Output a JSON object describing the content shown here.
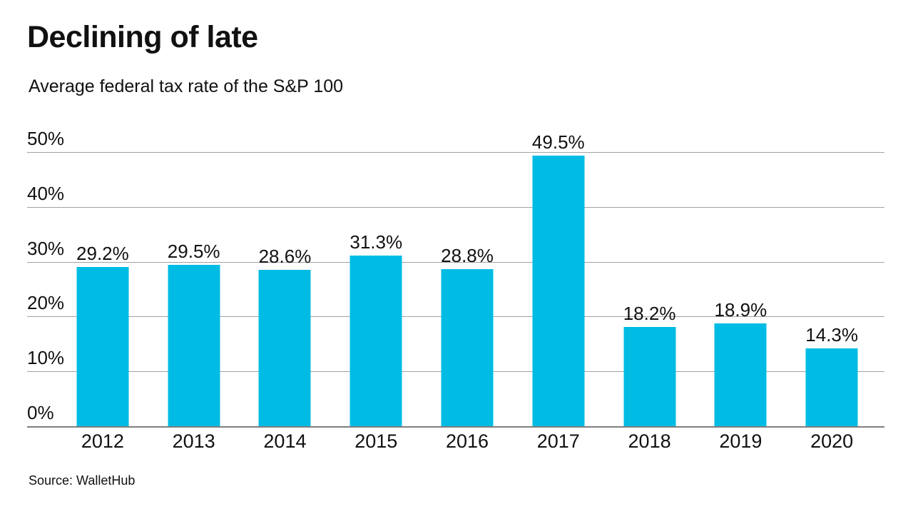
{
  "header": {
    "title": "Declining of late",
    "subtitle": "Average federal tax rate of the S&P 100"
  },
  "footer": {
    "source": "Source: WalletHub"
  },
  "chart_data": {
    "type": "bar",
    "title": "Declining of late",
    "subtitle": "Average federal tax rate of the S&P 100",
    "categories": [
      "2012",
      "2013",
      "2014",
      "2015",
      "2016",
      "2017",
      "2018",
      "2019",
      "2020"
    ],
    "values": [
      29.2,
      29.5,
      28.6,
      31.3,
      28.8,
      49.5,
      18.2,
      18.9,
      14.3
    ],
    "value_labels": [
      "29.2%",
      "29.5%",
      "28.6%",
      "31.3%",
      "28.8%",
      "49.5%",
      "18.2%",
      "18.9%",
      "14.3%"
    ],
    "xlabel": "",
    "ylabel": "",
    "ylim": [
      0,
      50
    ],
    "ytick_values": [
      0,
      10,
      20,
      30,
      40,
      50
    ],
    "ytick_labels": [
      "0%",
      "10%",
      "20%",
      "30%",
      "40%",
      "50%"
    ],
    "grid": "horizontal",
    "legend_position": "none",
    "bar_color": "#00BCE4",
    "gridline_color": "#a3a3a3",
    "axis_line_color": "#7f7f7f",
    "text_color": "#111111",
    "source": "Source: WalletHub"
  }
}
